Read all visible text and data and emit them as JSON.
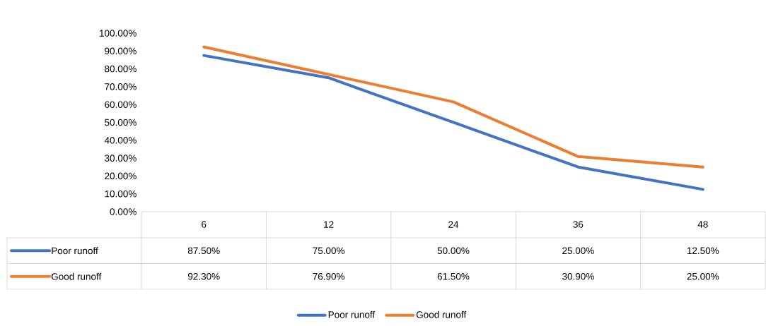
{
  "chart_data": {
    "type": "line",
    "categories": [
      "6",
      "12",
      "24",
      "36",
      "48"
    ],
    "series": [
      {
        "name": "Poor runoff",
        "color": "#4472c4",
        "values": [
          87.5,
          75,
          50,
          25,
          12.5
        ],
        "value_labels": [
          "87.50%",
          "75.00%",
          "50.00%",
          "25.00%",
          "12.50%"
        ]
      },
      {
        "name": "Good runoff",
        "color": "#ed7d31",
        "values": [
          92.3,
          76.9,
          61.5,
          30.9,
          25
        ],
        "value_labels": [
          "92.30%",
          "76.90%",
          "61.50%",
          "30.90%",
          "25.00%"
        ]
      }
    ],
    "ylim": [
      0,
      100
    ],
    "yticks": [
      {
        "value": 0,
        "label": "0.00%"
      },
      {
        "value": 10,
        "label": "10.00%"
      },
      {
        "value": 20,
        "label": "20.00%"
      },
      {
        "value": 30,
        "label": "30.00%"
      },
      {
        "value": 40,
        "label": "40.00%"
      },
      {
        "value": 50,
        "label": "50.00%"
      },
      {
        "value": 60,
        "label": "60.00%"
      },
      {
        "value": 70,
        "label": "70.00%"
      },
      {
        "value": 80,
        "label": "80.00%"
      },
      {
        "value": 90,
        "label": "90.00%"
      },
      {
        "value": 100,
        "label": "100.00%"
      }
    ],
    "legend": "bottom"
  }
}
